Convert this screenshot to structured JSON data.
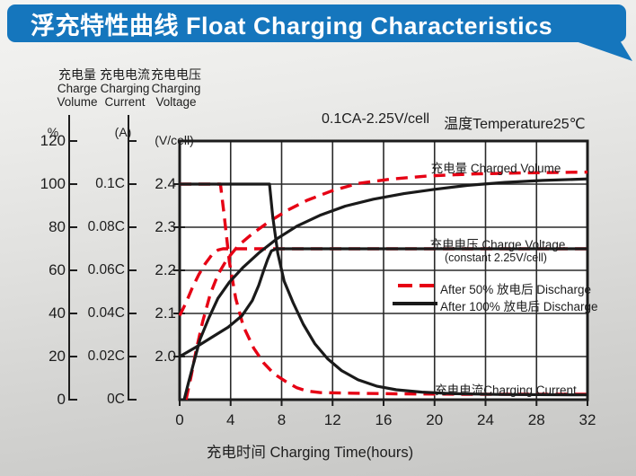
{
  "header": {
    "title": "浮充特性曲线 Float Charging Characteristics",
    "bg_color": "#1576bd",
    "text_color": "#ffffff"
  },
  "annotation": {
    "condition": "0.1CA-2.25V/cell",
    "temperature": "温度Temperature25℃"
  },
  "axis_headers": {
    "volume": {
      "cn": "充电量",
      "en1": "Charge",
      "en2": "Volume",
      "unit": "%"
    },
    "current": {
      "cn": "充电电流",
      "en1": "Charging",
      "en2": "Current",
      "unit": "(A)"
    },
    "voltage": {
      "cn": "充电电压",
      "en1": "Charging",
      "en2": "Voltage",
      "unit": "(V/cell)"
    }
  },
  "x_axis": {
    "label": "充电时间 Charging Time(hours)"
  },
  "curve_labels": {
    "volume": "充电量 Charged Volume",
    "voltage_line1": "充电电压 Charge Voltage",
    "voltage_line2": "(constant 2.25V/cell)",
    "current": "充电电流Charging Current"
  },
  "legend": {
    "items": [
      {
        "label": "After 50%  放电后 Discharge",
        "style": "dashed",
        "color": "#e60014"
      },
      {
        "label": "After 100%  放电后 Discharge",
        "style": "solid",
        "color": "#1a1a1a"
      }
    ]
  },
  "colors": {
    "red": "#e60014",
    "black": "#1a1a1a",
    "grid": "#2a2a2a",
    "header_blue": "#1576bd"
  },
  "chart_data": {
    "type": "line",
    "title": "浮充特性曲线 Float Charging Characteristics",
    "condition": "0.1CA-2.25V/cell",
    "temperature": "温度Temperature25℃",
    "grid": true,
    "x": {
      "label": "充电时间 Charging Time(hours)",
      "range": [
        0,
        32
      ],
      "ticks": [
        0,
        4,
        8,
        12,
        16,
        20,
        24,
        28,
        32
      ]
    },
    "y_axes": {
      "volume": {
        "name": "充电量 Charge Volume (%)",
        "range": [
          0,
          120
        ],
        "ticks": [
          120,
          100,
          80,
          60,
          40,
          20,
          0
        ]
      },
      "current": {
        "name": "充电电流 Charging Current (A)",
        "range": [
          0,
          0.12
        ],
        "ticks": [
          "0.1C",
          "0.08C",
          "0.06C",
          "0.04C",
          "0.02C",
          "0C"
        ]
      },
      "voltage": {
        "name": "充电电压 Charging Voltage (V/cell)",
        "range": [
          1.9,
          2.5
        ],
        "ticks": [
          "2.4",
          "2.3",
          "2.2",
          "2.1",
          "2.0"
        ]
      }
    },
    "legend_position": "inside-right-middle",
    "series": [
      {
        "id": "current-after-50",
        "quantity": "charging-current",
        "axis": "current",
        "discharge": "After 50% 放电后 Discharge",
        "style": "dashed",
        "color": "#e60014",
        "unit": "C",
        "points": [
          [
            0,
            0.1
          ],
          [
            3.2,
            0.1
          ],
          [
            3.5,
            0.085
          ],
          [
            3.9,
            0.064
          ],
          [
            4.4,
            0.047
          ],
          [
            5,
            0.034
          ],
          [
            5.8,
            0.024
          ],
          [
            6.6,
            0.017
          ],
          [
            7.4,
            0.012
          ],
          [
            8.3,
            0.0085
          ],
          [
            9.2,
            0.0055
          ],
          [
            10,
            0.004
          ],
          [
            11,
            0.0033
          ],
          [
            13.5,
            0.003
          ],
          [
            17,
            0.0027
          ],
          [
            22,
            0.0025
          ],
          [
            32,
            0.0025
          ]
        ]
      },
      {
        "id": "voltage-after-50",
        "quantity": "charge-voltage",
        "axis": "voltage",
        "discharge": "After 50% 放电后 Discharge",
        "style": "dashed",
        "color": "#e60014",
        "unit": "V/cell",
        "points": [
          [
            0,
            2.095
          ],
          [
            0.5,
            2.125
          ],
          [
            1,
            2.16
          ],
          [
            1.5,
            2.19
          ],
          [
            2,
            2.215
          ],
          [
            2.5,
            2.235
          ],
          [
            3,
            2.247
          ],
          [
            3.4,
            2.25
          ],
          [
            32,
            2.25
          ]
        ]
      },
      {
        "id": "volume-after-50",
        "quantity": "charged-volume",
        "axis": "volume",
        "discharge": "After 50% 放电后 Discharge",
        "style": "dashed",
        "color": "#e60014",
        "unit": "%",
        "points": [
          [
            0.5,
            0
          ],
          [
            0.9,
            11
          ],
          [
            1.3,
            23
          ],
          [
            1.8,
            36
          ],
          [
            2.4,
            49
          ],
          [
            3,
            58
          ],
          [
            3.7,
            65
          ],
          [
            4.6,
            71.5
          ],
          [
            5.7,
            77
          ],
          [
            7,
            82.5
          ],
          [
            8.5,
            88
          ],
          [
            10,
            92.5
          ],
          [
            12,
            97
          ],
          [
            14,
            100.3
          ],
          [
            16.5,
            102.3
          ],
          [
            19.5,
            103.8
          ],
          [
            23,
            104.7
          ],
          [
            27,
            105.2
          ],
          [
            32,
            105.6
          ]
        ]
      },
      {
        "id": "current-after-100",
        "quantity": "charging-current",
        "axis": "current",
        "discharge": "After 100% 放电后 Discharge",
        "style": "solid",
        "color": "#1a1a1a",
        "unit": "C",
        "points": [
          [
            0,
            0.1
          ],
          [
            7.05,
            0.1
          ],
          [
            7.3,
            0.085
          ],
          [
            7.7,
            0.068
          ],
          [
            8.2,
            0.055
          ],
          [
            8.9,
            0.045
          ],
          [
            9.7,
            0.035
          ],
          [
            10.6,
            0.026
          ],
          [
            11.6,
            0.019
          ],
          [
            12.7,
            0.0135
          ],
          [
            14,
            0.0092
          ],
          [
            15.5,
            0.0062
          ],
          [
            17,
            0.0046
          ],
          [
            19,
            0.0035
          ],
          [
            21.5,
            0.0028
          ],
          [
            25,
            0.0024
          ],
          [
            32,
            0.0022
          ]
        ]
      },
      {
        "id": "voltage-after-100",
        "quantity": "charge-voltage",
        "axis": "voltage",
        "discharge": "After 100% 放电后 Discharge",
        "style": "solid",
        "color": "#1a1a1a",
        "unit": "V/cell",
        "points": [
          [
            0,
            2.0
          ],
          [
            1.3,
            2.022
          ],
          [
            2.6,
            2.046
          ],
          [
            3.8,
            2.068
          ],
          [
            4.9,
            2.095
          ],
          [
            5.7,
            2.13
          ],
          [
            6.2,
            2.165
          ],
          [
            6.6,
            2.2
          ],
          [
            6.9,
            2.225
          ],
          [
            7.2,
            2.245
          ],
          [
            7.6,
            2.25
          ],
          [
            32,
            2.25
          ]
        ]
      },
      {
        "id": "volume-after-100",
        "quantity": "charged-volume",
        "axis": "volume",
        "discharge": "After 100% 放电后 Discharge",
        "style": "solid",
        "color": "#1a1a1a",
        "unit": "%",
        "points": [
          [
            0.35,
            0
          ],
          [
            0.7,
            8
          ],
          [
            1.1,
            17
          ],
          [
            1.6,
            28
          ],
          [
            2.3,
            38
          ],
          [
            3,
            47
          ],
          [
            3.9,
            54.5
          ],
          [
            5,
            61.5
          ],
          [
            6.2,
            68
          ],
          [
            7.6,
            74.5
          ],
          [
            9.2,
            80.5
          ],
          [
            11,
            85.5
          ],
          [
            13,
            89.8
          ],
          [
            15.2,
            93
          ],
          [
            17.6,
            95.6
          ],
          [
            20,
            97.6
          ],
          [
            22.6,
            99.4
          ],
          [
            25.5,
            100.8
          ],
          [
            28.5,
            101.7
          ],
          [
            32,
            102.4
          ]
        ]
      }
    ]
  }
}
